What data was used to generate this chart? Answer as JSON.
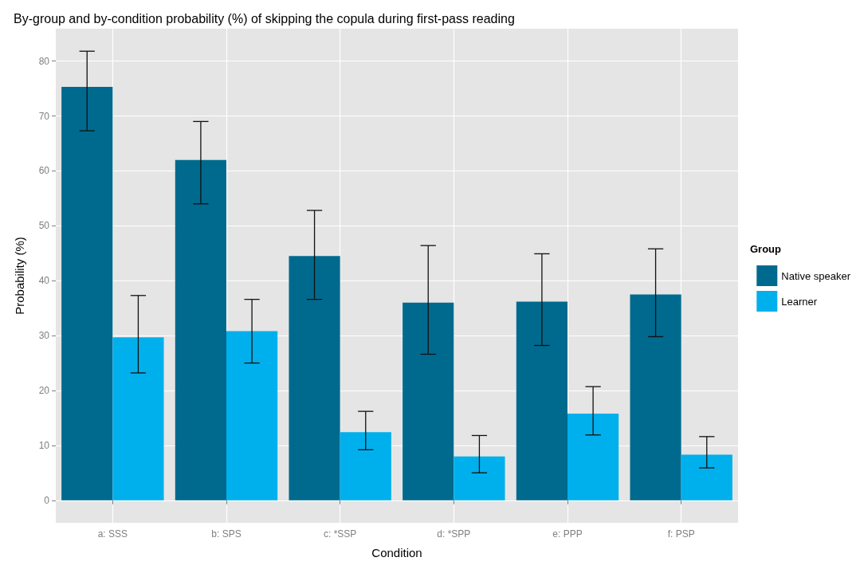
{
  "chart_data": {
    "type": "bar",
    "title": "By-group and by-condition probability (%) of skipping the copula during first-pass reading",
    "xlabel": "Condition",
    "ylabel": "Probability (%)",
    "legend_title": "Group",
    "categories": [
      "a: SSS",
      "b: SPS",
      "c: *SSP",
      "d: *SPP",
      "e: PPP",
      "f: PSP"
    ],
    "series": [
      {
        "name": "Native speaker",
        "color": "#006a8e",
        "values": [
          75.3,
          62.0,
          44.5,
          36.0,
          36.2,
          37.5
        ],
        "errors": [
          [
            67.3,
            81.8
          ],
          [
            54.0,
            69.0
          ],
          [
            36.6,
            52.8
          ],
          [
            26.6,
            46.4
          ],
          [
            28.2,
            44.9
          ],
          [
            29.8,
            45.8
          ]
        ]
      },
      {
        "name": "Learner",
        "color": "#00b0ec",
        "values": [
          29.7,
          30.8,
          12.4,
          8.0,
          15.8,
          8.3
        ],
        "errors": [
          [
            23.2,
            37.3
          ],
          [
            25.0,
            36.6
          ],
          [
            9.2,
            16.2
          ],
          [
            5.0,
            11.8
          ],
          [
            11.9,
            20.7
          ],
          [
            5.9,
            11.6
          ]
        ]
      }
    ],
    "ylim": [
      -4.1,
      85.9
    ],
    "yticks": [
      0,
      10,
      20,
      30,
      40,
      50,
      60,
      70,
      80
    ],
    "grid": true,
    "legend": "right"
  }
}
